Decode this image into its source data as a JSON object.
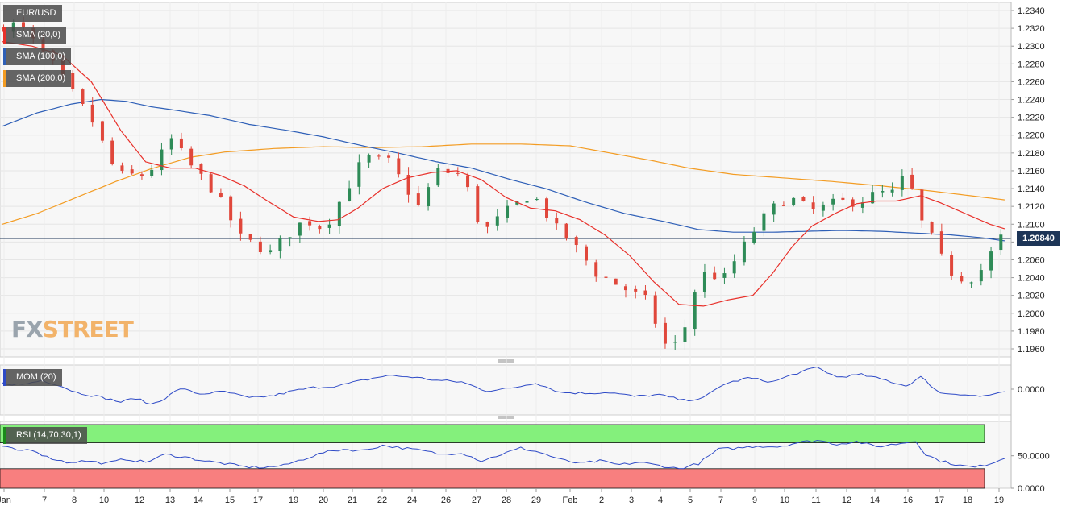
{
  "instrument": "EUR/USD",
  "indicators": {
    "sma20": {
      "label": "SMA (20,0)",
      "color": "#e8302a"
    },
    "sma100": {
      "label": "SMA (100,0)",
      "color": "#2e5fb7"
    },
    "sma200": {
      "label": "SMA (200,0)",
      "color": "#f39c23"
    },
    "mom": {
      "label": "MOM (20)",
      "color": "#2e4ac7"
    },
    "rsi": {
      "label": "RSI (14,70,30,1)",
      "color": "#2e4ac7"
    }
  },
  "logo": {
    "part1": "FX",
    "part2": "STREET"
  },
  "current_price": "1.20840",
  "chart_data": [
    {
      "type": "candlestick",
      "title": "EUR/USD",
      "ylim": [
        1.195,
        1.235
      ],
      "y_ticks": [
        "1.2340",
        "1.2320",
        "1.2300",
        "1.2280",
        "1.2260",
        "1.2240",
        "1.2220",
        "1.2200",
        "1.2180",
        "1.2160",
        "1.2140",
        "1.2120",
        "1.2100",
        "1.2080",
        "1.2060",
        "1.2040",
        "1.2020",
        "1.2000",
        "1.1980",
        "1.1960"
      ],
      "x_ticks": [
        "Jan",
        "7",
        "8",
        "10",
        "12",
        "13",
        "14",
        "15",
        "17",
        "19",
        "20",
        "21",
        "22",
        "24",
        "26",
        "27",
        "28",
        "29",
        "Feb",
        "2",
        "3",
        "4",
        "5",
        "7",
        "9",
        "10",
        "11",
        "12",
        "14",
        "16",
        "17",
        "18",
        "19"
      ],
      "current_price": 1.2084,
      "price_path": [
        [
          0,
          1.232
        ],
        [
          10,
          1.2325
        ],
        [
          25,
          1.2275
        ],
        [
          40,
          1.2215
        ],
        [
          50,
          1.2155
        ],
        [
          62,
          1.2155
        ],
        [
          72,
          1.2195
        ],
        [
          80,
          1.2165
        ],
        [
          90,
          1.2135
        ],
        [
          100,
          1.2085
        ],
        [
          112,
          1.2068
        ],
        [
          118,
          1.2085
        ],
        [
          126,
          1.2105
        ],
        [
          134,
          1.2095
        ],
        [
          140,
          1.2125
        ],
        [
          150,
          1.2175
        ],
        [
          160,
          1.217
        ],
        [
          166,
          1.2145
        ],
        [
          172,
          1.212
        ],
        [
          180,
          1.216
        ],
        [
          190,
          1.2155
        ],
        [
          198,
          1.209
        ],
        [
          208,
          1.2115
        ],
        [
          218,
          1.2135
        ],
        [
          228,
          1.2095
        ],
        [
          234,
          1.208
        ],
        [
          244,
          1.2045
        ],
        [
          254,
          1.203
        ],
        [
          264,
          1.2015
        ],
        [
          272,
          1.1965
        ],
        [
          278,
          1.1965
        ],
        [
          286,
          1.2045
        ],
        [
          296,
          1.204
        ],
        [
          306,
          1.2085
        ],
        [
          314,
          1.2115
        ],
        [
          322,
          1.213
        ],
        [
          332,
          1.2115
        ],
        [
          342,
          1.2125
        ],
        [
          350,
          1.2125
        ],
        [
          358,
          1.2135
        ],
        [
          366,
          1.2135
        ],
        [
          370,
          1.2165
        ],
        [
          374,
          1.211
        ],
        [
          380,
          1.2085
        ],
        [
          386,
          1.205
        ],
        [
          391,
          1.204
        ],
        [
          397,
          1.204
        ],
        [
          402,
          1.2055
        ],
        [
          407,
          1.2085
        ]
      ],
      "series": [
        {
          "name": "SMA (20,0)",
          "points": [
            [
              0,
              1.2305
            ],
            [
              12,
              1.23
            ],
            [
              24,
              1.229
            ],
            [
              36,
              1.226
            ],
            [
              48,
              1.2205
            ],
            [
              58,
              1.217
            ],
            [
              68,
              1.2163
            ],
            [
              78,
              1.2163
            ],
            [
              88,
              1.2155
            ],
            [
              98,
              1.2143
            ],
            [
              108,
              1.2125
            ],
            [
              118,
              1.2108
            ],
            [
              128,
              1.2103
            ],
            [
              136,
              1.2105
            ],
            [
              144,
              1.2118
            ],
            [
              154,
              1.214
            ],
            [
              164,
              1.2152
            ],
            [
              174,
              1.2158
            ],
            [
              184,
              1.216
            ],
            [
              194,
              1.215
            ],
            [
              204,
              1.213
            ],
            [
              214,
              1.2118
            ],
            [
              224,
              1.2115
            ],
            [
              234,
              1.2105
            ],
            [
              244,
              1.2088
            ],
            [
              254,
              1.2065
            ],
            [
              264,
              1.2035
            ],
            [
              274,
              1.201
            ],
            [
              284,
              1.2008
            ],
            [
              294,
              1.2015
            ],
            [
              304,
              1.202
            ],
            [
              312,
              1.2045
            ],
            [
              320,
              1.2075
            ],
            [
              328,
              1.2098
            ],
            [
              338,
              1.2113
            ],
            [
              346,
              1.2123
            ],
            [
              354,
              1.2126
            ],
            [
              362,
              1.2126
            ],
            [
              372,
              1.2132
            ],
            [
              380,
              1.2124
            ],
            [
              390,
              1.2112
            ],
            [
              400,
              1.21
            ],
            [
              407,
              1.2094
            ]
          ]
        },
        {
          "name": "SMA (100,0)",
          "points": [
            [
              0,
              1.221
            ],
            [
              14,
              1.2225
            ],
            [
              28,
              1.2235
            ],
            [
              40,
              1.224
            ],
            [
              50,
              1.2238
            ],
            [
              60,
              1.2232
            ],
            [
              70,
              1.2228
            ],
            [
              84,
              1.2222
            ],
            [
              100,
              1.2212
            ],
            [
              116,
              1.2205
            ],
            [
              130,
              1.2198
            ],
            [
              146,
              1.2188
            ],
            [
              160,
              1.218
            ],
            [
              176,
              1.217
            ],
            [
              190,
              1.2163
            ],
            [
              206,
              1.215
            ],
            [
              220,
              1.214
            ],
            [
              236,
              1.2125
            ],
            [
              252,
              1.2112
            ],
            [
              268,
              1.2103
            ],
            [
              282,
              1.2094
            ],
            [
              296,
              1.2091
            ],
            [
              312,
              1.2091
            ],
            [
              326,
              1.2092
            ],
            [
              340,
              1.2093
            ],
            [
              356,
              1.2092
            ],
            [
              370,
              1.209
            ],
            [
              384,
              1.2088
            ],
            [
              396,
              1.2085
            ],
            [
              407,
              1.2081
            ]
          ]
        },
        {
          "name": "SMA (200,0)",
          "points": [
            [
              0,
              1.21
            ],
            [
              14,
              1.2112
            ],
            [
              30,
              1.213
            ],
            [
              46,
              1.2148
            ],
            [
              60,
              1.2162
            ],
            [
              76,
              1.2175
            ],
            [
              90,
              1.2181
            ],
            [
              110,
              1.2185
            ],
            [
              130,
              1.2187
            ],
            [
              150,
              1.2186
            ],
            [
              170,
              1.2187
            ],
            [
              190,
              1.219
            ],
            [
              210,
              1.219
            ],
            [
              230,
              1.2188
            ],
            [
              246,
              1.218
            ],
            [
              262,
              1.2172
            ],
            [
              278,
              1.2163
            ],
            [
              296,
              1.2156
            ],
            [
              316,
              1.2152
            ],
            [
              336,
              1.2148
            ],
            [
              356,
              1.2143
            ],
            [
              374,
              1.2138
            ],
            [
              392,
              1.2132
            ],
            [
              407,
              1.2127
            ]
          ]
        }
      ]
    },
    {
      "type": "line",
      "title": "MOM (20)",
      "y_ticks": [
        "0.0000"
      ],
      "series": [
        {
          "name": "MOM (20)",
          "points": [
            [
              0,
              0.35
            ],
            [
              8,
              0.28
            ],
            [
              16,
              0.55
            ],
            [
              22,
              0.3
            ],
            [
              30,
              -0.2
            ],
            [
              40,
              -0.5
            ],
            [
              48,
              -0.8
            ],
            [
              54,
              -0.55
            ],
            [
              60,
              -0.95
            ],
            [
              66,
              -0.55
            ],
            [
              72,
              0.05
            ],
            [
              80,
              -0.3
            ],
            [
              90,
              -0.15
            ],
            [
              100,
              -0.55
            ],
            [
              110,
              -0.4
            ],
            [
              118,
              -0.1
            ],
            [
              126,
              0.1
            ],
            [
              136,
              0.2
            ],
            [
              146,
              0.55
            ],
            [
              156,
              0.85
            ],
            [
              166,
              0.75
            ],
            [
              176,
              0.55
            ],
            [
              186,
              0.45
            ],
            [
              196,
              -0.1
            ],
            [
              206,
              0.05
            ],
            [
              216,
              0.4
            ],
            [
              226,
              -0.2
            ],
            [
              236,
              -0.25
            ],
            [
              246,
              -0.2
            ],
            [
              256,
              -0.45
            ],
            [
              266,
              -0.35
            ],
            [
              276,
              -0.7
            ],
            [
              284,
              -0.55
            ],
            [
              292,
              0.3
            ],
            [
              302,
              0.7
            ],
            [
              312,
              0.45
            ],
            [
              322,
              1.0
            ],
            [
              330,
              1.35
            ],
            [
              338,
              0.75
            ],
            [
              348,
              0.9
            ],
            [
              358,
              0.55
            ],
            [
              366,
              0.2
            ],
            [
              372,
              0.75
            ],
            [
              380,
              -0.25
            ],
            [
              388,
              -0.3
            ],
            [
              396,
              -0.45
            ],
            [
              402,
              -0.3
            ],
            [
              407,
              -0.2
            ]
          ]
        }
      ]
    },
    {
      "type": "line",
      "title": "RSI (14,70,30,1)",
      "y_ticks": [
        "50.0000",
        "0.0000"
      ],
      "levels": [
        70,
        30
      ],
      "series": [
        {
          "name": "RSI (14,70,30,1)",
          "points": [
            [
              0,
              65
            ],
            [
              6,
              58
            ],
            [
              12,
              60
            ],
            [
              18,
              48
            ],
            [
              26,
              40
            ],
            [
              34,
              42
            ],
            [
              42,
              38
            ],
            [
              50,
              45
            ],
            [
              58,
              40
            ],
            [
              66,
              52
            ],
            [
              74,
              48
            ],
            [
              82,
              42
            ],
            [
              90,
              38
            ],
            [
              98,
              33
            ],
            [
              106,
              32
            ],
            [
              114,
              35
            ],
            [
              122,
              45
            ],
            [
              130,
              55
            ],
            [
              138,
              60
            ],
            [
              146,
              58
            ],
            [
              154,
              66
            ],
            [
              162,
              62
            ],
            [
              170,
              58
            ],
            [
              178,
              52
            ],
            [
              186,
              55
            ],
            [
              194,
              42
            ],
            [
              202,
              52
            ],
            [
              210,
              62
            ],
            [
              218,
              55
            ],
            [
              226,
              44
            ],
            [
              234,
              38
            ],
            [
              242,
              42
            ],
            [
              250,
              36
            ],
            [
              258,
              40
            ],
            [
              266,
              35
            ],
            [
              274,
              30
            ],
            [
              282,
              38
            ],
            [
              290,
              60
            ],
            [
              298,
              62
            ],
            [
              306,
              65
            ],
            [
              314,
              64
            ],
            [
              322,
              70
            ],
            [
              330,
              74
            ],
            [
              338,
              68
            ],
            [
              346,
              72
            ],
            [
              354,
              64
            ],
            [
              362,
              68
            ],
            [
              370,
              73
            ],
            [
              374,
              52
            ],
            [
              380,
              42
            ],
            [
              388,
              35
            ],
            [
              394,
              32
            ],
            [
              400,
              38
            ],
            [
              407,
              48
            ]
          ]
        }
      ]
    }
  ]
}
